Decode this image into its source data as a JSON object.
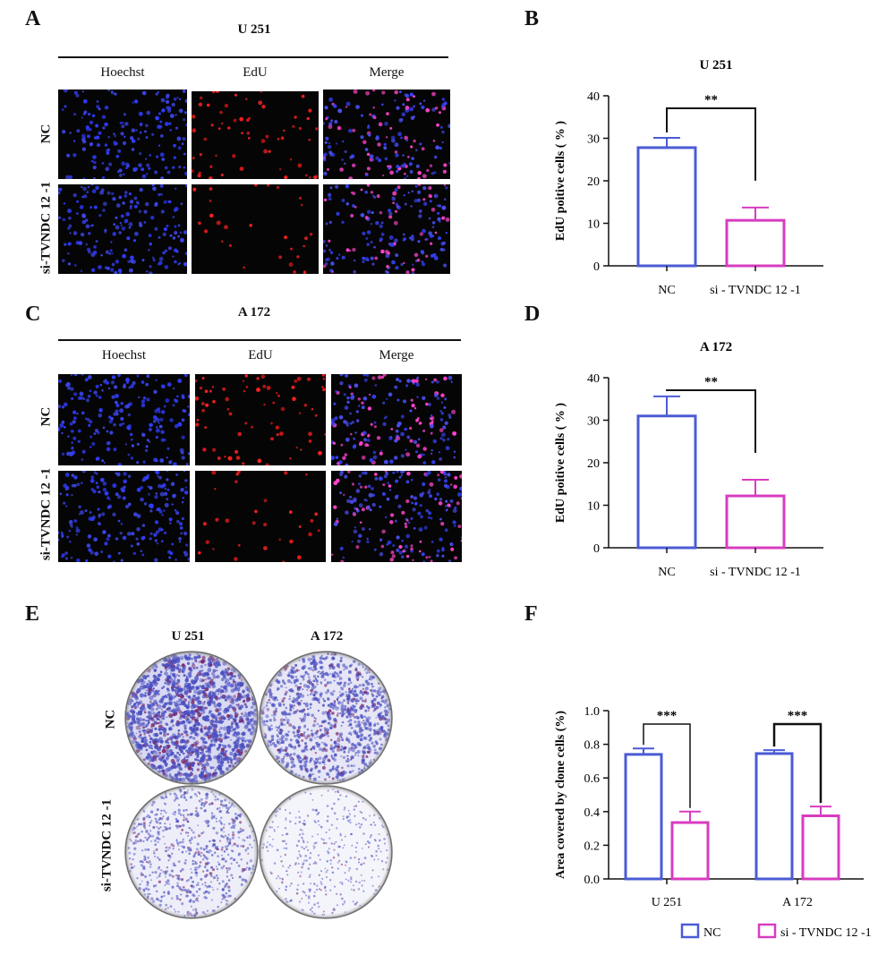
{
  "panels": {
    "A": {
      "label": "A",
      "title": "U 251",
      "columns": [
        "Hoechst",
        "EdU",
        "Merge"
      ],
      "rows": [
        "NC",
        "si-TVNDC 12 -1"
      ]
    },
    "B": {
      "label": "B"
    },
    "C": {
      "label": "C",
      "title": "A 172",
      "columns": [
        "Hoechst",
        "EdU",
        "Merge"
      ],
      "rows": [
        "NC",
        "si-TVNDC 12 -1"
      ]
    },
    "D": {
      "label": "D"
    },
    "E": {
      "label": "E",
      "columns": [
        "U 251",
        "A 172"
      ],
      "rows": [
        "NC",
        "si-TVNDC 12 -1"
      ]
    },
    "F": {
      "label": "F"
    }
  },
  "colors": {
    "nc": "#4b5bd6",
    "si": "#d83cc0",
    "hoechst": "#2f3cff",
    "edu": "#ff2222",
    "merge": "#ff44cc",
    "stain": "#4a4fc0"
  },
  "chart_data": [
    {
      "type": "bar",
      "title": "U 251",
      "ylabel": "EdU poitive cells ( % )",
      "categories": [
        "NC",
        "si - TVNDC 12 -1"
      ],
      "values": [
        27.8,
        10.7
      ],
      "errors": [
        2.3,
        3.0
      ],
      "yticks": [
        "0",
        "10",
        "20",
        "30",
        "40"
      ],
      "ylim": [
        0,
        40
      ],
      "significance": "**"
    },
    {
      "type": "bar",
      "title": "A 172",
      "ylabel": "EdU poitive cells ( % )",
      "categories": [
        "NC",
        "si - TVNDC 12 -1"
      ],
      "values": [
        31.0,
        12.2
      ],
      "errors": [
        4.6,
        3.8
      ],
      "yticks": [
        "0",
        "10",
        "20",
        "30",
        "40"
      ],
      "ylim": [
        0,
        40
      ],
      "significance": "**"
    },
    {
      "type": "bar",
      "ylabel": "Area covered by clone cells (%)",
      "categories": [
        "U 251",
        "A 172"
      ],
      "series": [
        {
          "name": "NC",
          "values": [
            0.74,
            0.745
          ],
          "errors": [
            0.035,
            0.02
          ]
        },
        {
          "name": "si - TVNDC 12 -1",
          "values": [
            0.335,
            0.375
          ],
          "errors": [
            0.065,
            0.055
          ]
        }
      ],
      "yticks": [
        "0.0",
        "0.2",
        "0.4",
        "0.6",
        "0.8",
        "1.0"
      ],
      "ylim": [
        0,
        1.0
      ],
      "significance": [
        "***",
        "***"
      ],
      "legend_position": "bottom-right"
    }
  ]
}
